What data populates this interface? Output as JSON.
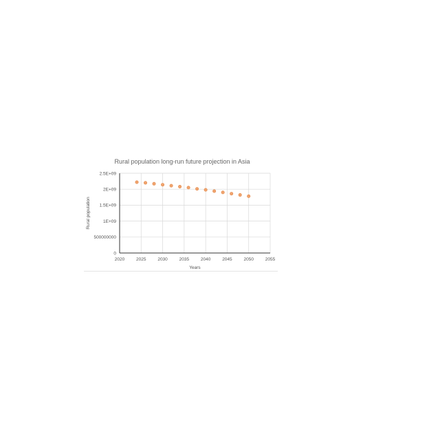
{
  "chart_data": {
    "type": "scatter",
    "title": "Rural population long-run future projection in Asia",
    "xlabel": "Years",
    "ylabel": "Rural population",
    "xlim": [
      2020,
      2055
    ],
    "ylim": [
      0,
      2500000000
    ],
    "x_ticks": [
      2020,
      2025,
      2030,
      2035,
      2040,
      2045,
      2050,
      2055
    ],
    "y_ticks": [
      0,
      500000000,
      1000000000,
      1500000000,
      2000000000,
      2500000000
    ],
    "x_tick_labels": [
      "2020",
      "2025",
      "2030",
      "2035",
      "2040",
      "2045",
      "2050",
      "2055"
    ],
    "y_tick_labels": [
      "0",
      "500000000",
      "1E+09",
      "1.5E+09",
      "2E+09",
      "2.5E+09"
    ],
    "grid": true,
    "marker_color": "#f0a46f",
    "series": [
      {
        "x": [
          2024,
          2026,
          2028,
          2030,
          2032,
          2034,
          2036,
          2038,
          2040,
          2042,
          2044,
          2046,
          2048,
          2050
        ],
        "y": [
          2220000000,
          2200000000,
          2170000000,
          2140000000,
          2110000000,
          2080000000,
          2050000000,
          2010000000,
          1980000000,
          1940000000,
          1900000000,
          1860000000,
          1820000000,
          1780000000
        ]
      }
    ]
  }
}
